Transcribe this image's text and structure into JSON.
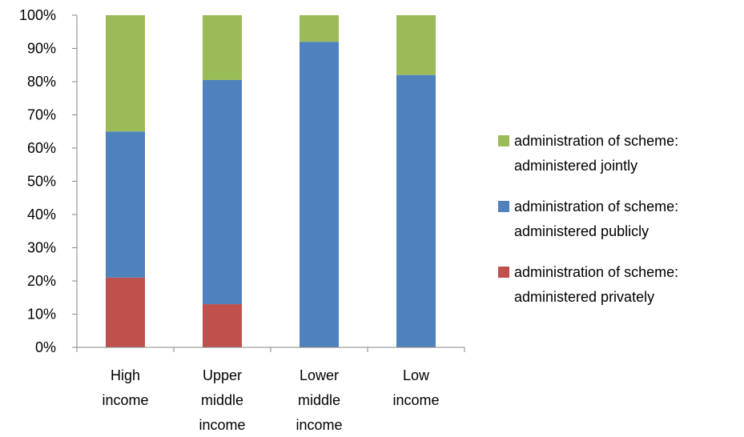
{
  "chart_data": {
    "type": "bar",
    "stacked": true,
    "percent_stacked": true,
    "categories": [
      [
        "High",
        "income"
      ],
      [
        "Upper",
        "middle",
        "income"
      ],
      [
        "Lower",
        "middle",
        "income"
      ],
      [
        "Low",
        "income"
      ]
    ],
    "series": [
      {
        "name": [
          "administration of scheme:",
          "administered privately"
        ],
        "color": "#c0504d",
        "values": [
          21,
          13,
          0,
          0
        ]
      },
      {
        "name": [
          "administration of scheme:",
          "administered publicly"
        ],
        "color": "#4f81bd",
        "values": [
          44,
          67.5,
          92,
          82
        ]
      },
      {
        "name": [
          "administration of scheme:",
          "administered jointly"
        ],
        "color": "#9bbb59",
        "values": [
          35,
          19.5,
          8,
          18
        ]
      }
    ],
    "yticks": [
      "0%",
      "10%",
      "20%",
      "30%",
      "40%",
      "50%",
      "60%",
      "70%",
      "80%",
      "90%",
      "100%"
    ],
    "ylim": [
      0,
      100
    ],
    "grid": false,
    "legend": "right",
    "legend_order": "reverse"
  }
}
